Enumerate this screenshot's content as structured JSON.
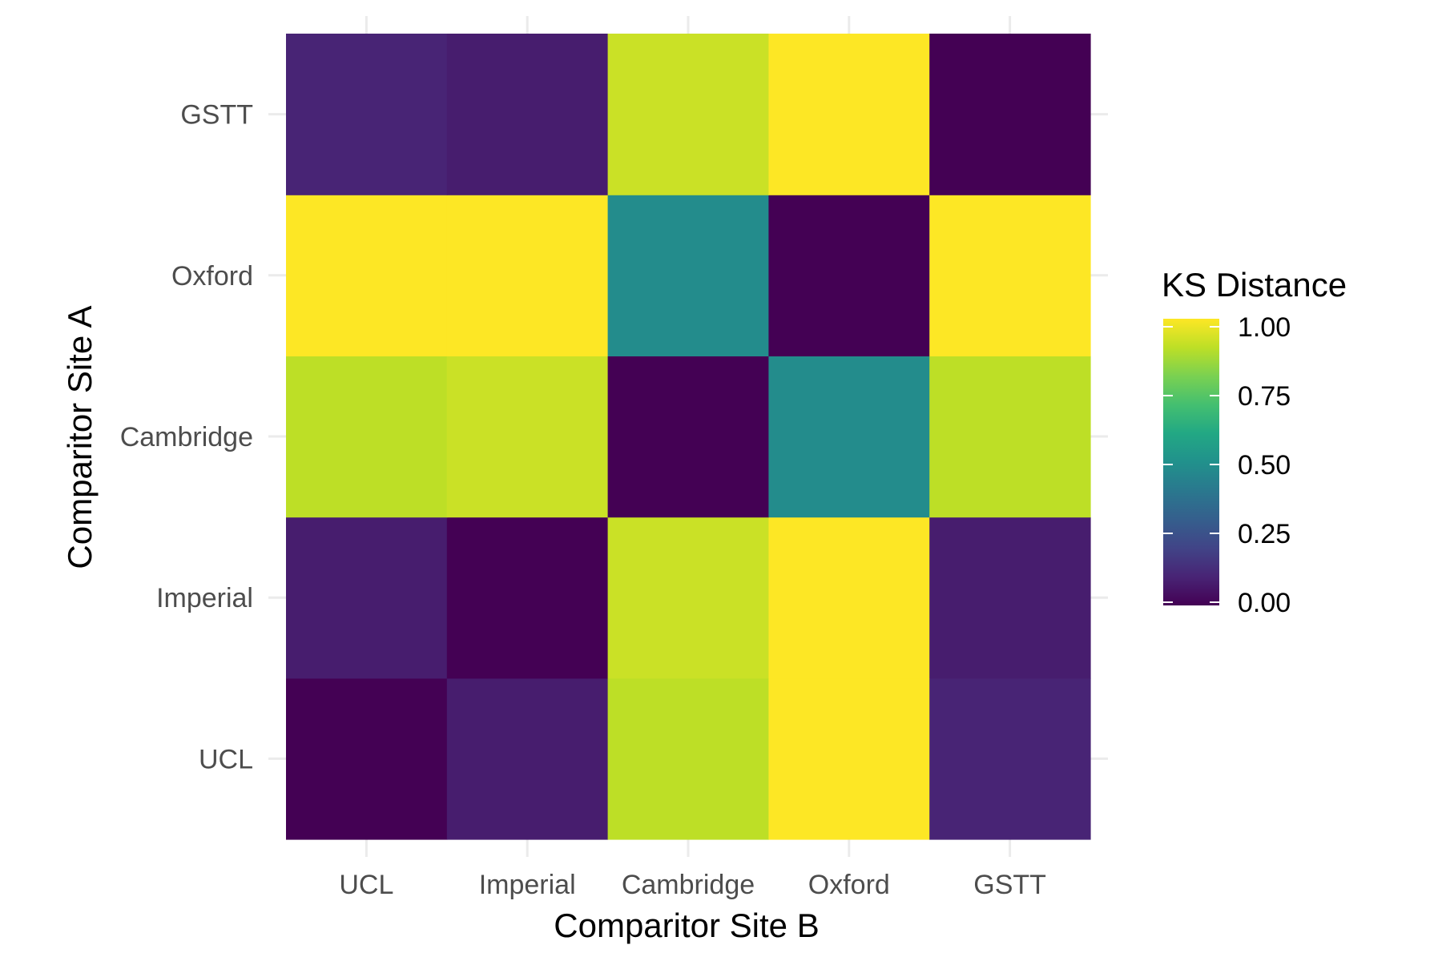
{
  "chart_data": {
    "type": "heatmap",
    "title": "",
    "xlabel": "Comparitor Site B",
    "ylabel": "Comparitor Site A",
    "x_categories": [
      "UCL",
      "Imperial",
      "Cambridge",
      "Oxford",
      "GSTT"
    ],
    "y_categories": [
      "UCL",
      "Imperial",
      "Cambridge",
      "Oxford",
      "GSTT"
    ],
    "values": [
      [
        0.0,
        0.08,
        0.9,
        1.0,
        0.1
      ],
      [
        0.08,
        0.0,
        0.92,
        1.0,
        0.08
      ],
      [
        0.9,
        0.92,
        0.0,
        0.48,
        0.9
      ],
      [
        1.0,
        1.0,
        0.48,
        0.0,
        1.0
      ],
      [
        0.1,
        0.08,
        0.92,
        1.0,
        0.0
      ]
    ],
    "value_range": [
      0,
      1
    ],
    "colorscale": "viridis",
    "legend": {
      "title": "KS Distance",
      "ticks": [
        "0.00",
        "0.25",
        "0.50",
        "0.75",
        "1.00"
      ],
      "position": "right"
    },
    "grid": true
  }
}
